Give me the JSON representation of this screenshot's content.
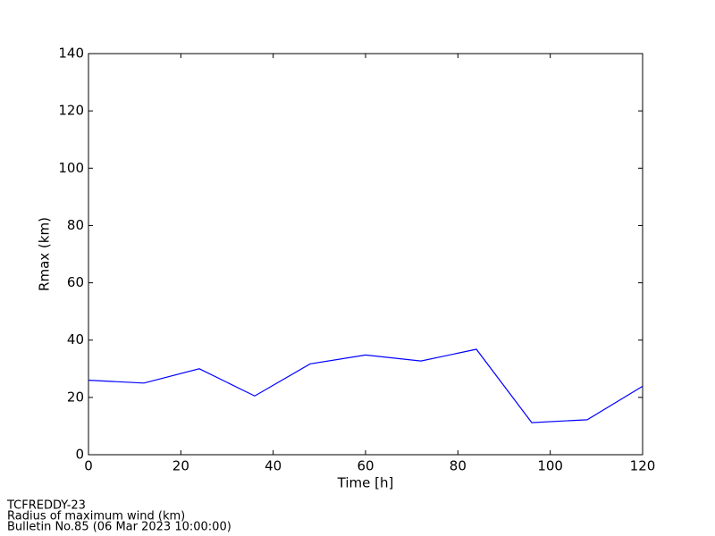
{
  "chart_data": {
    "type": "line",
    "xlabel": "Time [h]",
    "ylabel": "Rmax (km)",
    "x": [
      0,
      12,
      24,
      36,
      48,
      60,
      72,
      84,
      96,
      108,
      120
    ],
    "series": [
      {
        "color": "#0000ff",
        "values": [
          26,
          25,
          30,
          20.5,
          31.7,
          34.8,
          32.7,
          36.8,
          11.2,
          12.2,
          23.9
        ]
      }
    ],
    "xlim": [
      0,
      120
    ],
    "xticks": [
      0,
      20,
      40,
      60,
      80,
      100,
      120
    ],
    "ylim": [
      0,
      140
    ],
    "yticks": [
      0,
      20,
      40,
      60,
      80,
      100,
      120,
      140
    ],
    "grid": false,
    "annotations": [
      "TCFREDDY-23",
      "Radius of maximum wind (km)",
      "Bulletin No.85 (06 Mar 2023  10:00:00)"
    ]
  }
}
